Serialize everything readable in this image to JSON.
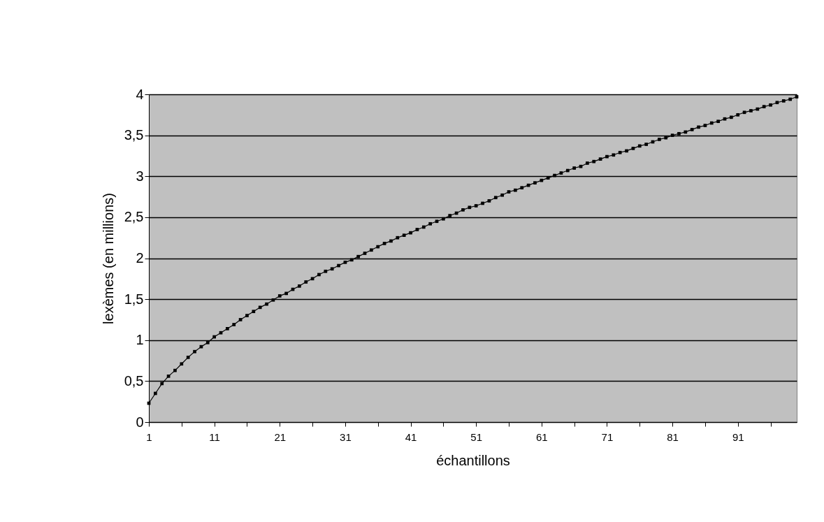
{
  "chart_data": {
    "type": "line",
    "xlabel": "échantillons",
    "ylabel": "lexèmes (en millions)",
    "categories": [
      "1",
      null,
      null,
      null,
      null,
      null,
      null,
      null,
      null,
      null,
      "11",
      null,
      null,
      null,
      null,
      null,
      null,
      null,
      null,
      null,
      "21",
      null,
      null,
      null,
      null,
      null,
      null,
      null,
      null,
      null,
      "31",
      null,
      null,
      null,
      null,
      null,
      null,
      null,
      null,
      null,
      "41",
      null,
      null,
      null,
      null,
      null,
      null,
      null,
      null,
      null,
      "51",
      null,
      null,
      null,
      null,
      null,
      null,
      null,
      null,
      null,
      "61",
      null,
      null,
      null,
      null,
      null,
      null,
      null,
      null,
      null,
      "71",
      null,
      null,
      null,
      null,
      null,
      null,
      null,
      null,
      null,
      "81",
      null,
      null,
      null,
      null,
      null,
      null,
      null,
      null,
      null,
      "91",
      null,
      null,
      null,
      null,
      null,
      null,
      null,
      null,
      null
    ],
    "series": [
      {
        "color": "#000000",
        "values": [
          0.23,
          0.35,
          0.47,
          0.56,
          0.63,
          0.71,
          0.79,
          0.86,
          0.92,
          0.97,
          1.04,
          1.09,
          1.14,
          1.19,
          1.25,
          1.3,
          1.35,
          1.4,
          1.44,
          1.49,
          1.54,
          1.57,
          1.62,
          1.66,
          1.71,
          1.75,
          1.8,
          1.84,
          1.87,
          1.91,
          1.95,
          1.98,
          2.02,
          2.06,
          2.1,
          2.14,
          2.18,
          2.21,
          2.25,
          2.28,
          2.31,
          2.35,
          2.38,
          2.42,
          2.45,
          2.48,
          2.52,
          2.55,
          2.59,
          2.62,
          2.64,
          2.67,
          2.7,
          2.74,
          2.77,
          2.81,
          2.83,
          2.86,
          2.89,
          2.92,
          2.95,
          2.98,
          3.01,
          3.04,
          3.07,
          3.1,
          3.12,
          3.16,
          3.18,
          3.21,
          3.24,
          3.26,
          3.29,
          3.31,
          3.34,
          3.37,
          3.39,
          3.42,
          3.45,
          3.47,
          3.5,
          3.52,
          3.54,
          3.57,
          3.6,
          3.62,
          3.65,
          3.67,
          3.7,
          3.72,
          3.75,
          3.78,
          3.8,
          3.82,
          3.85,
          3.87,
          3.9,
          3.92,
          3.94,
          3.97
        ]
      }
    ],
    "ylim": [
      0,
      4
    ],
    "yticks": [
      0,
      {
        "value": 0.5,
        "label": "0,5"
      },
      1,
      {
        "value": 1.5,
        "label": "1,5"
      },
      2,
      {
        "value": 2.5,
        "label": "2,5"
      },
      3,
      {
        "value": 3.5,
        "label": "3,5"
      },
      4
    ],
    "grid": "y",
    "marker": "square",
    "line_style": "solid"
  }
}
